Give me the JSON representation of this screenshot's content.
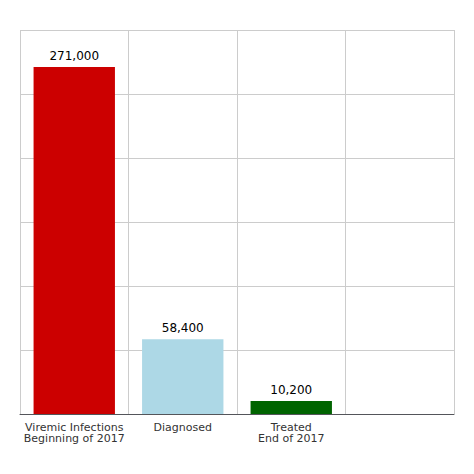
{
  "chart_data": {
    "type": "bar",
    "categories": [
      "Viremic Infections\nBeginning of 2017",
      "Diagnosed",
      "Treated\nEnd of 2017",
      null
    ],
    "values": [
      271000,
      58400,
      10200,
      0
    ],
    "value_labels": [
      "271,000",
      "58,400",
      "10,200",
      null
    ],
    "colors": [
      "#cc0000",
      "#add8e6",
      "#006400",
      "#ffffff"
    ],
    "ylim": [
      0,
      300000
    ],
    "yticks": [
      0,
      50000,
      100000,
      150000,
      200000,
      250000,
      300000
    ],
    "grid": true,
    "data_labels": true,
    "tick_labels": "x"
  }
}
